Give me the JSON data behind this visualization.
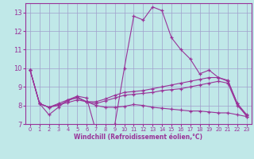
{
  "background_color": "#c0e8e8",
  "grid_color": "#a0a0cc",
  "line_color": "#993399",
  "xlabel": "Windchill (Refroidissement éolien,°C)",
  "xlim": [
    -0.5,
    23.5
  ],
  "ylim": [
    7,
    13.5
  ],
  "yticks": [
    7,
    8,
    9,
    10,
    11,
    12,
    13
  ],
  "xticks": [
    0,
    1,
    2,
    3,
    4,
    5,
    6,
    7,
    8,
    9,
    10,
    11,
    12,
    13,
    14,
    15,
    16,
    17,
    18,
    19,
    20,
    21,
    22,
    23
  ],
  "lines": [
    {
      "x": [
        0,
        1,
        2,
        3,
        4,
        5,
        6,
        7,
        8,
        9,
        10,
        11,
        12,
        13,
        14,
        15,
        16,
        17,
        18,
        19,
        20,
        21,
        22,
        23
      ],
      "y": [
        9.9,
        8.1,
        7.5,
        7.9,
        8.3,
        8.5,
        8.4,
        6.6,
        6.75,
        7.0,
        10.0,
        12.8,
        12.6,
        13.3,
        13.1,
        11.65,
        11.0,
        10.5,
        9.7,
        9.9,
        9.5,
        9.3,
        8.1,
        7.4
      ]
    },
    {
      "x": [
        0,
        1,
        2,
        3,
        4,
        5,
        6,
        7,
        8,
        9,
        10,
        11,
        12,
        13,
        14,
        15,
        16,
        17,
        18,
        19,
        20,
        21,
        22,
        23
      ],
      "y": [
        9.9,
        8.1,
        7.9,
        8.0,
        8.25,
        8.45,
        8.2,
        8.2,
        8.35,
        8.55,
        8.7,
        8.75,
        8.8,
        8.9,
        9.0,
        9.1,
        9.2,
        9.3,
        9.4,
        9.5,
        9.5,
        9.35,
        8.1,
        7.5
      ]
    },
    {
      "x": [
        0,
        1,
        2,
        3,
        4,
        5,
        6,
        7,
        8,
        9,
        10,
        11,
        12,
        13,
        14,
        15,
        16,
        17,
        18,
        19,
        20,
        21,
        22,
        23
      ],
      "y": [
        9.9,
        8.1,
        7.9,
        8.1,
        8.3,
        8.4,
        8.2,
        8.1,
        8.25,
        8.4,
        8.55,
        8.6,
        8.65,
        8.7,
        8.8,
        8.85,
        8.9,
        9.0,
        9.1,
        9.2,
        9.3,
        9.2,
        8.0,
        7.45
      ]
    },
    {
      "x": [
        0,
        1,
        2,
        3,
        4,
        5,
        6,
        7,
        8,
        9,
        10,
        11,
        12,
        13,
        14,
        15,
        16,
        17,
        18,
        19,
        20,
        21,
        22,
        23
      ],
      "y": [
        9.9,
        8.1,
        7.9,
        8.05,
        8.15,
        8.3,
        8.2,
        8.0,
        7.9,
        7.9,
        7.95,
        8.05,
        8.0,
        7.9,
        7.85,
        7.8,
        7.75,
        7.7,
        7.7,
        7.65,
        7.6,
        7.6,
        7.5,
        7.4
      ]
    }
  ]
}
